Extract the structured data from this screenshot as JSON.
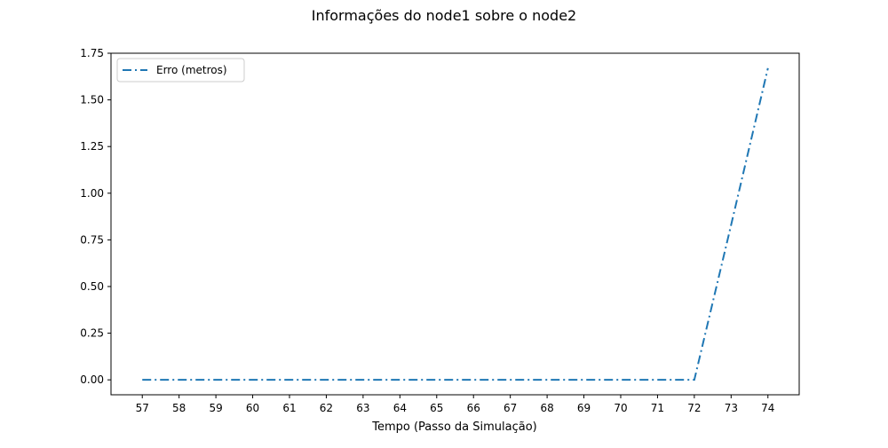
{
  "chart_data": {
    "type": "line",
    "title": "Informações do node1 sobre o node2",
    "xlabel": "Tempo (Passo da Simulação)",
    "ylabel": "",
    "x": [
      57,
      58,
      59,
      60,
      61,
      62,
      63,
      64,
      65,
      66,
      67,
      68,
      69,
      70,
      71,
      72,
      73,
      74
    ],
    "xticks": [
      "57",
      "58",
      "59",
      "60",
      "61",
      "62",
      "63",
      "64",
      "65",
      "66",
      "67",
      "68",
      "69",
      "70",
      "71",
      "72",
      "73",
      "74"
    ],
    "yticks": [
      "0.00",
      "0.25",
      "0.50",
      "0.75",
      "1.00",
      "1.25",
      "1.50",
      "1.75"
    ],
    "xlim": [
      56.15,
      74.85
    ],
    "ylim": [
      -0.08,
      1.75
    ],
    "grid": false,
    "legend_position": "upper-left",
    "series": [
      {
        "name": "Erro (metros)",
        "color": "#1f77b4",
        "linestyle": "dashdot",
        "values": [
          0,
          0,
          0,
          0,
          0,
          0,
          0,
          0,
          0,
          0,
          0,
          0,
          0,
          0,
          0,
          0,
          0.83,
          1.67
        ]
      }
    ]
  }
}
